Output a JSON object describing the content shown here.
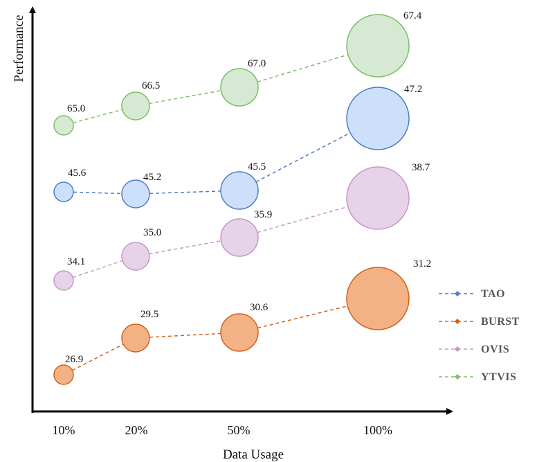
{
  "chart_data": {
    "type": "scatter",
    "subtype": "bubble",
    "title": "",
    "xlabel": "Data Usage",
    "ylabel": "Performance",
    "categories": [
      "10%",
      "20%",
      "50%",
      "100%"
    ],
    "legend_position": "bottom-right",
    "grid": false,
    "series": [
      {
        "name": "TAO",
        "values": [
          45.6,
          45.2,
          45.5,
          47.2
        ],
        "fill": "#cce0fb",
        "stroke": "#4f7cc4"
      },
      {
        "name": "BURST",
        "values": [
          26.9,
          29.5,
          30.6,
          31.2
        ],
        "fill": "#f3b285",
        "stroke": "#d26018"
      },
      {
        "name": "OVIS",
        "values": [
          34.1,
          35.0,
          35.9,
          38.7
        ],
        "fill": "#e7d3e8",
        "stroke": "#c597c9"
      },
      {
        "name": "YTVIS",
        "values": [
          65.0,
          66.5,
          67.0,
          67.4
        ],
        "fill": "#d6ead3",
        "stroke": "#7cbd69"
      }
    ],
    "value_labels": [
      [
        "45.6",
        "45.2",
        "45.5",
        "47.2"
      ],
      [
        "26.9",
        "29.5",
        "30.6",
        "31.2"
      ],
      [
        "34.1",
        "35.0",
        "35.9",
        "38.7"
      ],
      [
        "65.0",
        "66.5",
        "67.0",
        "67.4"
      ]
    ]
  }
}
